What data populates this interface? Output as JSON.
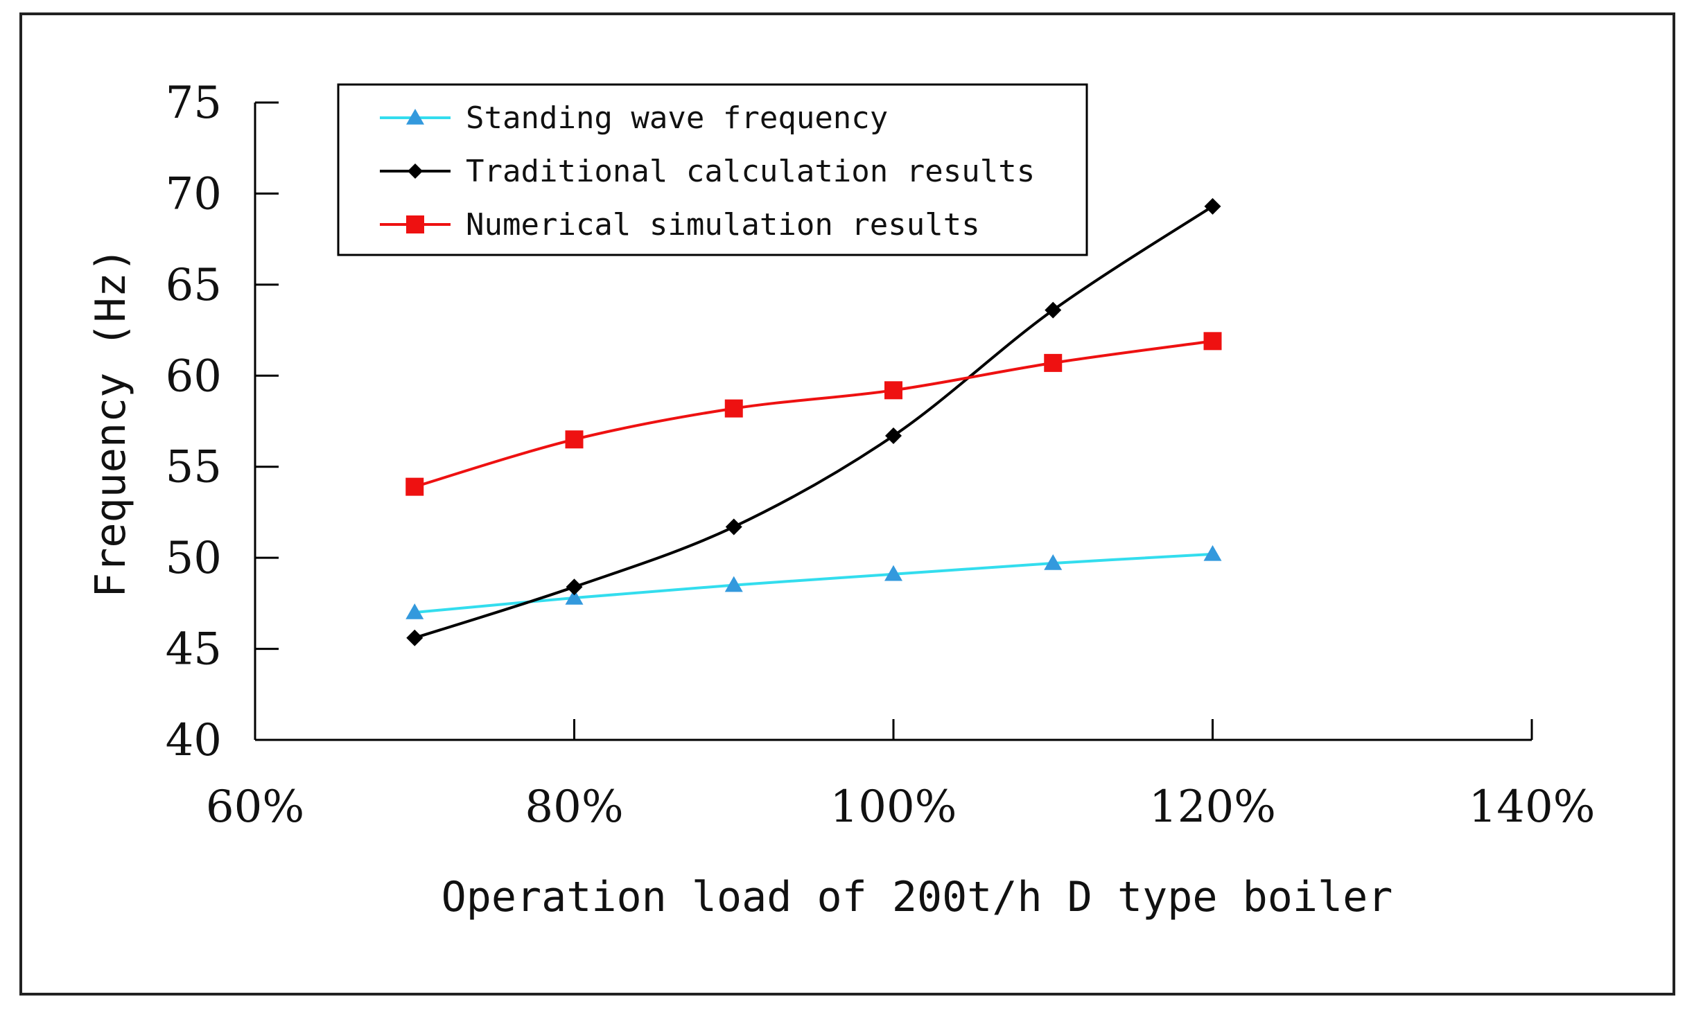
{
  "chart_data": {
    "type": "line",
    "title": "",
    "xlabel": "Operation load of 200t/h D type boiler",
    "ylabel": "Frequency (Hz)",
    "xlim": [
      60,
      140
    ],
    "ylim": [
      40,
      75
    ],
    "x_ticks": [
      {
        "value": 60,
        "label": "60%"
      },
      {
        "value": 80,
        "label": "80%"
      },
      {
        "value": 100,
        "label": "100%"
      },
      {
        "value": 120,
        "label": "120%"
      },
      {
        "value": 140,
        "label": "140%"
      }
    ],
    "y_ticks": [
      {
        "value": 40,
        "label": "40"
      },
      {
        "value": 45,
        "label": "45"
      },
      {
        "value": 50,
        "label": "50"
      },
      {
        "value": 55,
        "label": "55"
      },
      {
        "value": 60,
        "label": "60"
      },
      {
        "value": 65,
        "label": "65"
      },
      {
        "value": 70,
        "label": "70"
      },
      {
        "value": 75,
        "label": "75"
      }
    ],
    "grid": false,
    "legend_position": "top-left",
    "x": [
      70,
      80,
      90,
      100,
      110,
      120
    ],
    "series": [
      {
        "name": "Standing wave frequency",
        "marker": "triangle",
        "line_color": "#33ddee",
        "marker_color": "#3399dd",
        "values": [
          47.0,
          47.8,
          48.5,
          49.1,
          49.7,
          50.2
        ]
      },
      {
        "name": "Traditional calculation results",
        "marker": "diamond",
        "line_color": "#000000",
        "marker_color": "#000000",
        "values": [
          45.6,
          48.4,
          51.7,
          56.7,
          63.6,
          69.3
        ]
      },
      {
        "name": "Numerical simulation results",
        "marker": "square",
        "line_color": "#ee1111",
        "marker_color": "#ee1111",
        "values": [
          53.9,
          56.5,
          58.2,
          59.2,
          60.7,
          61.9
        ]
      }
    ]
  }
}
